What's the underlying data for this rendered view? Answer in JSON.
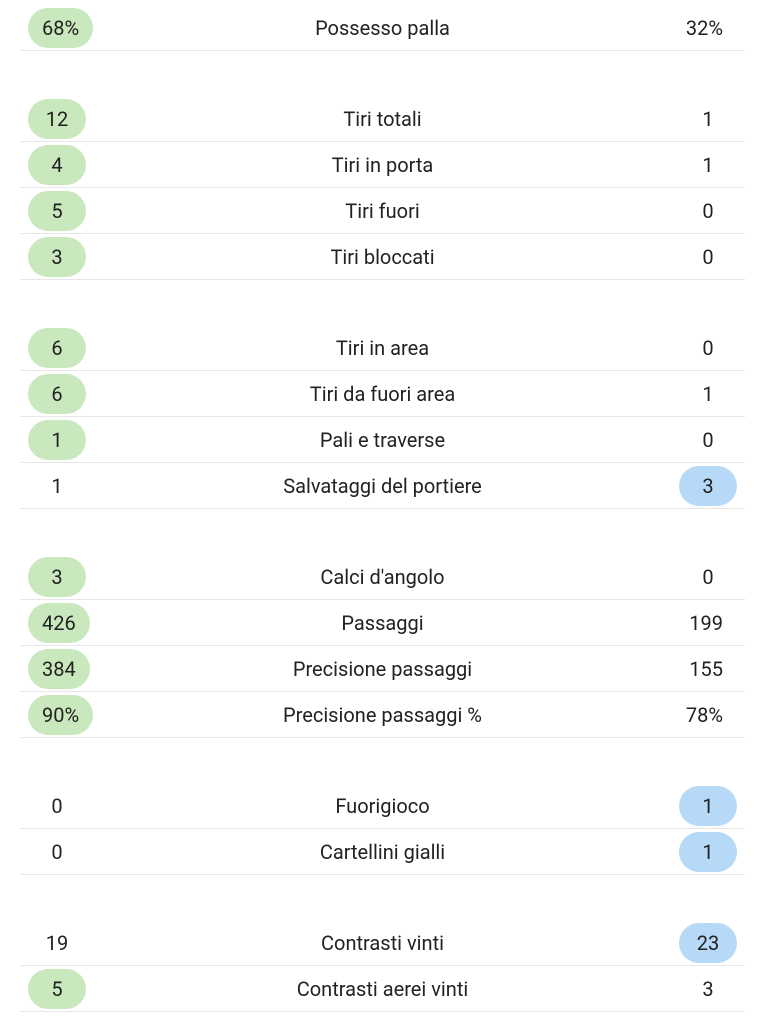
{
  "groups": [
    {
      "rows": [
        {
          "home": "68%",
          "label": "Possesso palla",
          "away": "32%",
          "highlight": "home"
        }
      ]
    },
    {
      "rows": [
        {
          "home": "12",
          "label": "Tiri totali",
          "away": "1",
          "highlight": "home"
        },
        {
          "home": "4",
          "label": "Tiri in porta",
          "away": "1",
          "highlight": "home"
        },
        {
          "home": "5",
          "label": "Tiri fuori",
          "away": "0",
          "highlight": "home"
        },
        {
          "home": "3",
          "label": "Tiri bloccati",
          "away": "0",
          "highlight": "home"
        }
      ]
    },
    {
      "rows": [
        {
          "home": "6",
          "label": "Tiri in area",
          "away": "0",
          "highlight": "home"
        },
        {
          "home": "6",
          "label": "Tiri da fuori area",
          "away": "1",
          "highlight": "home"
        },
        {
          "home": "1",
          "label": "Pali e traverse",
          "away": "0",
          "highlight": "home"
        },
        {
          "home": "1",
          "label": "Salvataggi del portiere",
          "away": "3",
          "highlight": "away"
        }
      ]
    },
    {
      "rows": [
        {
          "home": "3",
          "label": "Calci d'angolo",
          "away": "0",
          "highlight": "home"
        },
        {
          "home": "426",
          "label": "Passaggi",
          "away": "199",
          "highlight": "home"
        },
        {
          "home": "384",
          "label": "Precisione passaggi",
          "away": "155",
          "highlight": "home"
        },
        {
          "home": "90%",
          "label": "Precisione passaggi %",
          "away": "78%",
          "highlight": "home"
        }
      ]
    },
    {
      "rows": [
        {
          "home": "0",
          "label": "Fuorigioco",
          "away": "1",
          "highlight": "away"
        },
        {
          "home": "0",
          "label": "Cartellini gialli",
          "away": "1",
          "highlight": "away"
        }
      ]
    },
    {
      "rows": [
        {
          "home": "19",
          "label": "Contrasti vinti",
          "away": "23",
          "highlight": "away"
        },
        {
          "home": "5",
          "label": "Contrasti aerei vinti",
          "away": "3",
          "highlight": "home"
        }
      ]
    }
  ]
}
